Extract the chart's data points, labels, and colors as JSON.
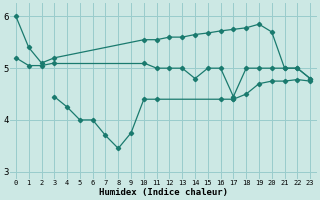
{
  "xlabel": "Humidex (Indice chaleur)",
  "bg_color": "#cce8e4",
  "grid_color": "#99cccc",
  "line_color": "#1a7a6e",
  "xlim": [
    -0.5,
    23.5
  ],
  "ylim": [
    2.85,
    6.25
  ],
  "yticks": [
    3,
    4,
    5,
    6
  ],
  "xticks": [
    0,
    1,
    2,
    3,
    4,
    5,
    6,
    7,
    8,
    9,
    10,
    11,
    12,
    13,
    14,
    15,
    16,
    17,
    18,
    19,
    20,
    21,
    22,
    23
  ],
  "line_top_x": [
    0,
    1,
    2,
    3,
    10,
    11,
    12,
    13,
    14,
    15,
    16,
    17,
    18,
    19,
    20,
    21,
    22,
    23
  ],
  "line_top_y": [
    6.0,
    5.4,
    5.1,
    5.2,
    5.55,
    5.55,
    5.6,
    5.6,
    5.65,
    5.68,
    5.72,
    5.75,
    5.78,
    5.85,
    5.7,
    5.0,
    5.0,
    4.8
  ],
  "line_mid_x": [
    0,
    1,
    2,
    3,
    10,
    11,
    12,
    13,
    14,
    15,
    16,
    17,
    18,
    19,
    20,
    21,
    22,
    23
  ],
  "line_mid_y": [
    5.2,
    5.05,
    5.05,
    5.1,
    5.1,
    5.0,
    5.0,
    5.0,
    4.8,
    5.0,
    5.0,
    4.45,
    5.0,
    5.0,
    5.0,
    5.0,
    5.0,
    4.8
  ],
  "line_low_x": [
    3,
    4,
    5,
    6,
    7,
    8,
    9,
    10,
    11,
    16,
    17,
    18,
    19,
    20,
    21,
    22,
    23
  ],
  "line_low_y": [
    4.45,
    4.25,
    4.0,
    4.0,
    3.7,
    3.45,
    3.75,
    4.4,
    4.4,
    4.4,
    4.4,
    4.5,
    4.7,
    4.75,
    4.75,
    4.78,
    4.75
  ]
}
